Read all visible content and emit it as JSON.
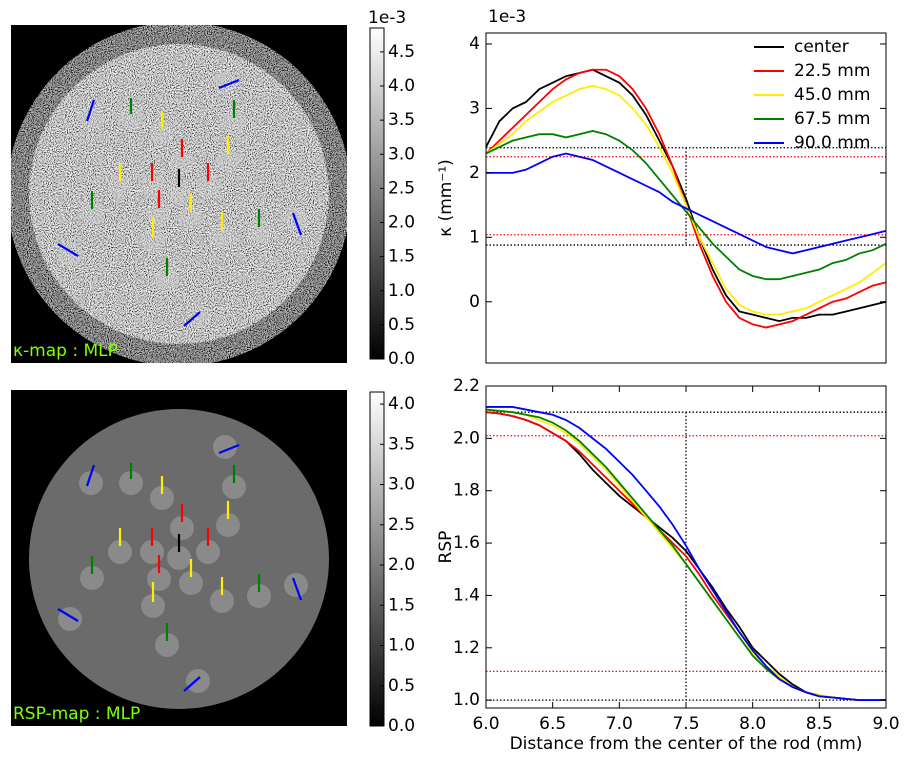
{
  "chart_data": [
    {
      "type": "image",
      "label": "κ-map : MLP",
      "noise": true,
      "colorbar": {
        "clim": [
          0,
          4.85
        ],
        "offset": "1e-3",
        "ticks": [
          {
            "value": 0,
            "label": "0.0"
          },
          0.5,
          {
            "value": 1,
            "label": "1.0"
          },
          1.5,
          {
            "value": 2,
            "label": "2.0"
          },
          2.5,
          {
            "value": 3,
            "label": "3.0"
          },
          3.5,
          {
            "value": 4,
            "label": "4.0"
          },
          4.5
        ]
      }
    },
    {
      "type": "image",
      "label": "RSP-map : MLP",
      "noise": false,
      "colorbar": {
        "clim": [
          0,
          4.15
        ],
        "ticks": [
          {
            "value": 0,
            "label": "0.0"
          },
          0.5,
          {
            "value": 1,
            "label": "1.0"
          },
          1.5,
          {
            "value": 2,
            "label": "2.0"
          },
          2.5,
          {
            "value": 3,
            "label": "3.0"
          },
          3.5,
          {
            "value": 4,
            "label": "4.0"
          }
        ]
      }
    },
    {
      "type": "line",
      "ylabel": "κ (mm⁻¹)",
      "offset": "1e-3",
      "legend": "upper right",
      "xlim": [
        6,
        9
      ],
      "ylim": [
        -0.95,
        4.17
      ],
      "yticks": [
        0,
        1,
        2,
        3,
        4
      ],
      "x": [
        6.0,
        6.1,
        6.2,
        6.3,
        6.4,
        6.5,
        6.6,
        6.7,
        6.8,
        6.9,
        7.0,
        7.1,
        7.2,
        7.3,
        7.4,
        7.5,
        7.6,
        7.7,
        7.8,
        7.9,
        8.0,
        8.1,
        8.2,
        8.3,
        8.4,
        8.5,
        8.6,
        8.7,
        8.8,
        8.9,
        9.0
      ],
      "series": [
        {
          "name": "center",
          "color": "#000000",
          "values": [
            2.4,
            2.8,
            3.0,
            3.1,
            3.3,
            3.4,
            3.5,
            3.55,
            3.6,
            3.5,
            3.4,
            3.2,
            2.9,
            2.5,
            2.1,
            1.6,
            1.0,
            0.5,
            0.1,
            -0.15,
            -0.2,
            -0.25,
            -0.3,
            -0.25,
            -0.25,
            -0.2,
            -0.2,
            -0.15,
            -0.1,
            -0.05,
            0.0
          ]
        },
        {
          "name": "22.5 mm",
          "color": "#ff0000",
          "values": [
            2.3,
            2.5,
            2.7,
            2.9,
            3.1,
            3.3,
            3.45,
            3.55,
            3.6,
            3.6,
            3.5,
            3.3,
            3.0,
            2.6,
            2.1,
            1.5,
            0.9,
            0.4,
            0.0,
            -0.25,
            -0.35,
            -0.4,
            -0.35,
            -0.3,
            -0.2,
            -0.1,
            0.0,
            0.05,
            0.15,
            0.25,
            0.3
          ]
        },
        {
          "name": "45.0 mm",
          "color": "#ffee00",
          "values": [
            2.3,
            2.45,
            2.6,
            2.8,
            2.95,
            3.1,
            3.2,
            3.3,
            3.35,
            3.3,
            3.2,
            3.0,
            2.75,
            2.4,
            2.0,
            1.5,
            1.0,
            0.6,
            0.2,
            -0.05,
            -0.15,
            -0.2,
            -0.2,
            -0.15,
            -0.1,
            0.0,
            0.1,
            0.2,
            0.3,
            0.45,
            0.6
          ]
        },
        {
          "name": "67.5 mm",
          "color": "#008000",
          "values": [
            2.3,
            2.4,
            2.5,
            2.55,
            2.6,
            2.6,
            2.55,
            2.6,
            2.65,
            2.6,
            2.5,
            2.35,
            2.15,
            1.9,
            1.65,
            1.4,
            1.15,
            0.9,
            0.7,
            0.5,
            0.4,
            0.35,
            0.35,
            0.4,
            0.45,
            0.5,
            0.6,
            0.65,
            0.75,
            0.8,
            0.9
          ]
        },
        {
          "name": "90.0 mm",
          "color": "#0000ff",
          "values": [
            2.0,
            2.0,
            2.0,
            2.05,
            2.15,
            2.25,
            2.3,
            2.25,
            2.2,
            2.1,
            2.0,
            1.9,
            1.8,
            1.7,
            1.55,
            1.45,
            1.35,
            1.25,
            1.15,
            1.05,
            0.95,
            0.85,
            0.8,
            0.75,
            0.8,
            0.85,
            0.9,
            0.95,
            1.0,
            1.05,
            1.1
          ]
        }
      ],
      "hlines": [
        {
          "value": 2.39,
          "color": "#000000"
        },
        {
          "value": 0.88,
          "color": "#000000"
        },
        {
          "value": 2.25,
          "color": "#ff0000"
        },
        {
          "value": 1.04,
          "color": "#ff0000"
        }
      ],
      "vline": {
        "value": 7.5,
        "color": "#000000"
      }
    },
    {
      "type": "line",
      "ylabel": "RSP",
      "xlabel": "Distance from the center of the rod (mm)",
      "xlim": [
        6,
        9
      ],
      "ylim": [
        0.97,
        2.2
      ],
      "yticks": [
        {
          "value": 1,
          "label": "1.0"
        },
        1.2,
        1.4,
        1.6,
        1.8,
        {
          "value": 2,
          "label": "2.0"
        },
        2.2
      ],
      "xticks": [
        {
          "value": 6,
          "label": "6.0"
        },
        6.5,
        {
          "value": 7,
          "label": "7.0"
        },
        7.5,
        {
          "value": 8,
          "label": "8.0"
        },
        8.5,
        {
          "value": 9,
          "label": "9.0"
        }
      ],
      "x": [
        6.0,
        6.1,
        6.2,
        6.3,
        6.4,
        6.5,
        6.6,
        6.7,
        6.8,
        6.9,
        7.0,
        7.1,
        7.2,
        7.3,
        7.4,
        7.5,
        7.6,
        7.7,
        7.8,
        7.9,
        8.0,
        8.1,
        8.2,
        8.3,
        8.4,
        8.5,
        8.6,
        8.7,
        8.8,
        8.9,
        9.0
      ],
      "series": [
        {
          "name": "center",
          "color": "#000000",
          "values": [
            2.1,
            2.095,
            2.085,
            2.07,
            2.05,
            2.02,
            1.99,
            1.94,
            1.88,
            1.83,
            1.78,
            1.74,
            1.7,
            1.66,
            1.62,
            1.57,
            1.5,
            1.43,
            1.35,
            1.28,
            1.2,
            1.15,
            1.1,
            1.06,
            1.03,
            1.015,
            1.01,
            1.005,
            1.0,
            1.0,
            1.0
          ]
        },
        {
          "name": "22.5 mm",
          "color": "#ff0000",
          "values": [
            2.1,
            2.095,
            2.085,
            2.07,
            2.05,
            2.02,
            1.99,
            1.95,
            1.9,
            1.85,
            1.8,
            1.75,
            1.7,
            1.65,
            1.6,
            1.55,
            1.48,
            1.4,
            1.33,
            1.26,
            1.19,
            1.13,
            1.09,
            1.05,
            1.03,
            1.015,
            1.01,
            1.005,
            1.0,
            1.0,
            1.0
          ]
        },
        {
          "name": "45.0 mm",
          "color": "#ffee00",
          "values": [
            2.11,
            2.105,
            2.1,
            2.09,
            2.07,
            2.05,
            2.02,
            1.98,
            1.93,
            1.88,
            1.82,
            1.76,
            1.7,
            1.64,
            1.58,
            1.52,
            1.45,
            1.38,
            1.31,
            1.24,
            1.18,
            1.13,
            1.09,
            1.05,
            1.03,
            1.02,
            1.01,
            1.005,
            1.0,
            1.0,
            1.0
          ]
        },
        {
          "name": "67.5 mm",
          "color": "#008000",
          "values": [
            2.11,
            2.105,
            2.1,
            2.09,
            2.08,
            2.06,
            2.03,
            1.99,
            1.94,
            1.89,
            1.83,
            1.77,
            1.71,
            1.65,
            1.59,
            1.52,
            1.45,
            1.38,
            1.31,
            1.24,
            1.17,
            1.12,
            1.08,
            1.05,
            1.03,
            1.015,
            1.01,
            1.005,
            1.0,
            1.0,
            1.0
          ]
        },
        {
          "name": "90.0 mm",
          "color": "#0000ff",
          "values": [
            2.12,
            2.12,
            2.12,
            2.11,
            2.1,
            2.09,
            2.07,
            2.04,
            2.0,
            1.96,
            1.91,
            1.86,
            1.8,
            1.74,
            1.67,
            1.59,
            1.5,
            1.42,
            1.34,
            1.26,
            1.19,
            1.13,
            1.08,
            1.05,
            1.03,
            1.015,
            1.01,
            1.005,
            1.0,
            1.0,
            1.0
          ]
        }
      ],
      "hlines": [
        {
          "value": 2.1,
          "color": "#000000"
        },
        {
          "value": 1.0,
          "color": "#000000"
        },
        {
          "value": 2.01,
          "color": "#ff0000"
        },
        {
          "value": 1.11,
          "color": "#ff0000"
        }
      ],
      "vline": {
        "value": 7.5,
        "color": "#000000"
      }
    }
  ]
}
